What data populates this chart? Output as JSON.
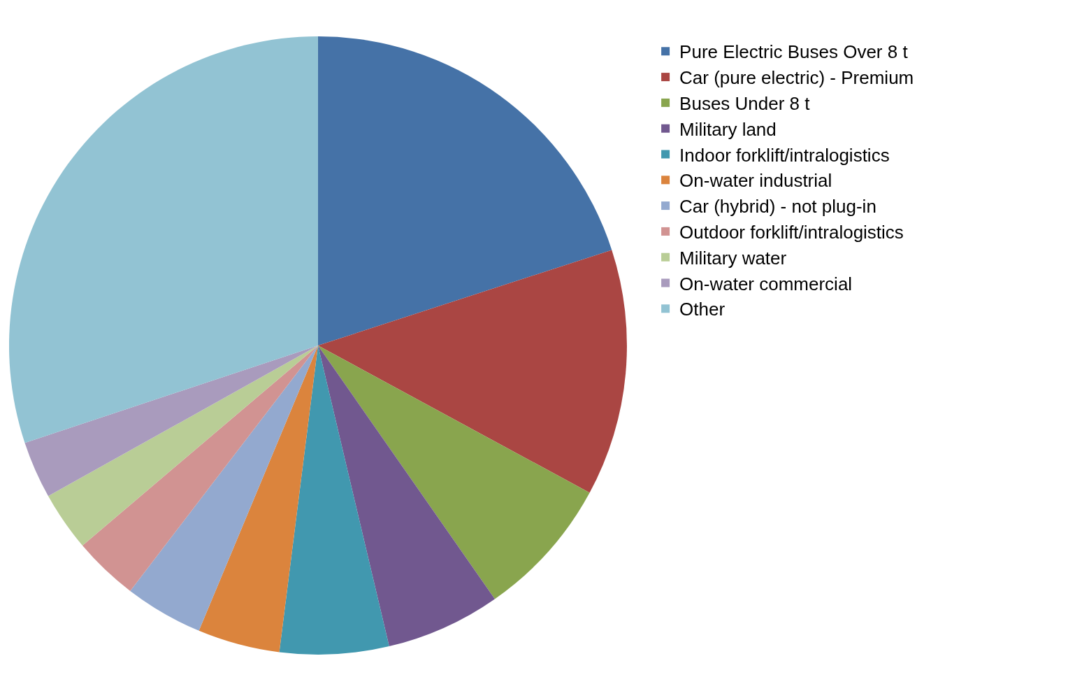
{
  "chart_data": {
    "type": "pie",
    "categories": [
      "Pure Electric Buses Over 8 t",
      "Car (pure electric) - Premium",
      "Buses Under 8 t",
      "Military land",
      "Indoor forklift/intralogistics",
      "On-water industrial",
      "Car (hybrid) - not plug-in",
      "Outdoor forklift/intralogistics",
      "Military water",
      "On-water commercial",
      "Other"
    ],
    "values": [
      20.0,
      12.9,
      7.4,
      6.0,
      5.7,
      4.3,
      4.1,
      3.4,
      3.1,
      3.0,
      30.1
    ],
    "colors": [
      "#4572a7",
      "#aa4643",
      "#89a54e",
      "#71588f",
      "#4198af",
      "#db843d",
      "#93a9cf",
      "#d19392",
      "#b9cd96",
      "#a99bbd",
      "#92c3d3"
    ],
    "legend": "right"
  }
}
